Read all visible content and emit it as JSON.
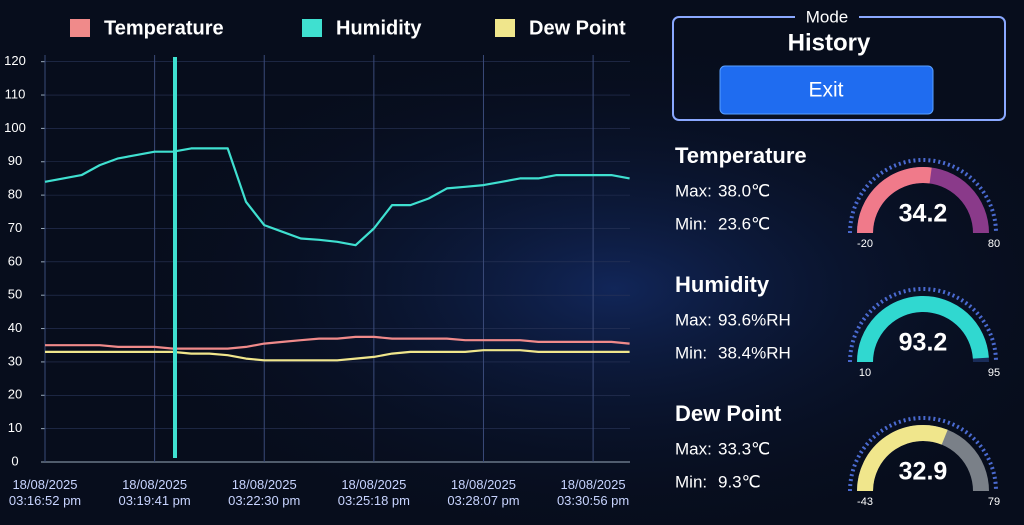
{
  "chart_data": {
    "type": "line",
    "categories": [
      "18/08/2025 03:16:52 pm",
      null,
      null,
      null,
      null,
      null,
      "18/08/2025 03:19:41 pm",
      null,
      null,
      null,
      null,
      null,
      "18/08/2025 03:22:30 pm",
      null,
      null,
      null,
      null,
      null,
      "18/08/2025 03:25:18 pm",
      null,
      null,
      null,
      null,
      null,
      "18/08/2025 03:28:07 pm",
      null,
      null,
      null,
      null,
      null,
      "18/08/2025 03:30:56 pm",
      null,
      null
    ],
    "series": [
      {
        "name": "Temperature",
        "color": "#f08a8a",
        "values": [
          35,
          35,
          35,
          35,
          34.5,
          34.5,
          34.5,
          34,
          34,
          34,
          34,
          34.5,
          35.5,
          36,
          36.5,
          37,
          37,
          37.5,
          37.5,
          37,
          37,
          37,
          37,
          36.5,
          36.5,
          36.5,
          36.5,
          36,
          36,
          36,
          36,
          36,
          35.5
        ]
      },
      {
        "name": "Humidity",
        "color": "#3fe0d0",
        "values": [
          84,
          85,
          86,
          89,
          91,
          92,
          93,
          93,
          94,
          94,
          94,
          78,
          71,
          69,
          67,
          66.6,
          66,
          65,
          70,
          77,
          77,
          79,
          82,
          82.5,
          83,
          84,
          85,
          85,
          86,
          86,
          86,
          86,
          85
        ]
      },
      {
        "name": "Dew Point",
        "color": "#f0e68c",
        "values": [
          33,
          33,
          33,
          33,
          33,
          33,
          33,
          33,
          32.5,
          32.5,
          32,
          31,
          30.5,
          30.5,
          30.5,
          30.5,
          30.5,
          31,
          31.5,
          32.5,
          33,
          33,
          33,
          33,
          33.5,
          33.5,
          33.5,
          33,
          33,
          33,
          33,
          33,
          33
        ]
      }
    ],
    "ylim": [
      0,
      122
    ],
    "yticks": [
      0,
      10,
      20,
      30,
      40,
      50,
      60,
      70,
      80,
      90,
      100,
      110,
      120
    ],
    "grid": true
  },
  "mode": {
    "label": "Mode",
    "value": "History",
    "button": "Exit"
  },
  "panels": [
    {
      "title": "Temperature",
      "max_label": "Max:",
      "max": "38.0℃",
      "min_label": "Min:",
      "min": "23.6℃",
      "gauge": {
        "value": 34.2,
        "min": -20,
        "max": 80,
        "color": "#f07a8a",
        "rest": "#8a3a8a"
      }
    },
    {
      "title": "Humidity",
      "max_label": "Max:",
      "max": "93.6%RH",
      "min_label": "Min:",
      "min": "38.4%RH",
      "gauge": {
        "value": 93.2,
        "min": 10,
        "max": 95,
        "color": "#30d8d0",
        "rest": "#1a2d5a"
      }
    },
    {
      "title": "Dew Point",
      "max_label": "Max:",
      "max": "33.3℃",
      "min_label": "Min:",
      "min": "9.3℃",
      "gauge": {
        "value": 32.9,
        "min": -43,
        "max": 79,
        "color": "#f0e68c",
        "rest": "#7a8088"
      }
    }
  ]
}
